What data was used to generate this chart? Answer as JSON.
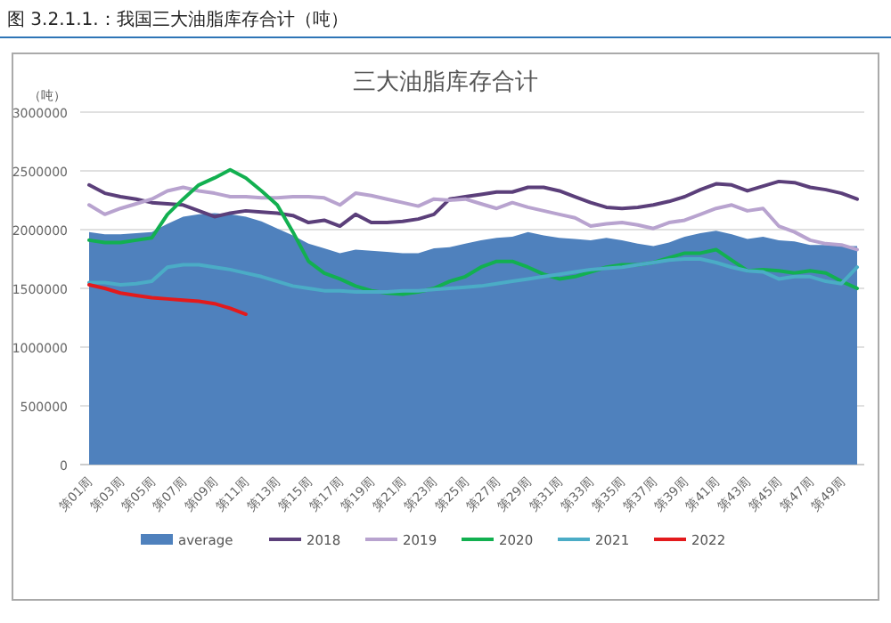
{
  "chart_data": {
    "type": "line",
    "title": "三大油脂库存合计",
    "ylabel": "（吨）",
    "annotations": [
      "图 3.2.1.1.：我国三大油脂库存合计（吨）"
    ],
    "categories": [
      "第01周",
      null,
      "第03周",
      null,
      "第05周",
      null,
      "第07周",
      null,
      "第09周",
      null,
      "第11周",
      null,
      "第13周",
      null,
      "第15周",
      null,
      "第17周",
      null,
      "第19周",
      null,
      "第21周",
      null,
      "第23周",
      null,
      "第25周",
      null,
      "第27周",
      null,
      "第29周",
      null,
      "第31周",
      null,
      "第33周",
      null,
      "第35周",
      null,
      "第37周",
      null,
      "第39周",
      null,
      "第41周",
      null,
      "第43周",
      null,
      "第45周",
      null,
      "第47周",
      null,
      "第49周",
      null
    ],
    "ylim": [
      0,
      3000000
    ],
    "yticks": [
      0,
      500000,
      1000000,
      1500000,
      2000000,
      2500000,
      3000000
    ],
    "grid": "y",
    "legend": "bottom",
    "series": [
      {
        "name": "average",
        "type": "area",
        "color": "#4f81bd",
        "values": [
          1980000,
          1960000,
          1960000,
          1970000,
          1980000,
          2050000,
          2110000,
          2130000,
          2140000,
          2130000,
          2110000,
          2070000,
          2010000,
          1950000,
          1880000,
          1840000,
          1800000,
          1830000,
          1820000,
          1810000,
          1800000,
          1800000,
          1840000,
          1850000,
          1880000,
          1910000,
          1930000,
          1940000,
          1980000,
          1950000,
          1930000,
          1920000,
          1910000,
          1930000,
          1910000,
          1880000,
          1860000,
          1890000,
          1940000,
          1970000,
          1990000,
          1960000,
          1920000,
          1940000,
          1910000,
          1900000,
          1870000,
          1870000,
          1860000,
          1860000
        ]
      },
      {
        "name": "2018",
        "type": "line",
        "color": "#5b3f7a",
        "values": [
          2380000,
          2310000,
          2280000,
          2260000,
          2230000,
          2220000,
          2210000,
          2160000,
          2110000,
          2140000,
          2160000,
          2150000,
          2140000,
          2120000,
          2060000,
          2080000,
          2030000,
          2130000,
          2060000,
          2060000,
          2070000,
          2090000,
          2130000,
          2260000,
          2280000,
          2300000,
          2320000,
          2320000,
          2360000,
          2360000,
          2330000,
          2280000,
          2230000,
          2190000,
          2180000,
          2190000,
          2210000,
          2240000,
          2280000,
          2340000,
          2390000,
          2380000,
          2330000,
          2370000,
          2410000,
          2400000,
          2360000,
          2340000,
          2310000,
          2260000
        ]
      },
      {
        "name": "2019",
        "type": "line",
        "color": "#b8a3cf",
        "values": [
          2210000,
          2130000,
          2180000,
          2220000,
          2260000,
          2330000,
          2360000,
          2330000,
          2310000,
          2280000,
          2280000,
          2270000,
          2270000,
          2280000,
          2280000,
          2270000,
          2210000,
          2310000,
          2290000,
          2260000,
          2230000,
          2200000,
          2260000,
          2250000,
          2260000,
          2220000,
          2180000,
          2230000,
          2190000,
          2160000,
          2130000,
          2100000,
          2030000,
          2050000,
          2060000,
          2040000,
          2010000,
          2060000,
          2080000,
          2130000,
          2180000,
          2210000,
          2160000,
          2180000,
          2030000,
          1980000,
          1910000,
          1880000,
          1870000,
          1830000
        ]
      },
      {
        "name": "2020",
        "type": "line",
        "color": "#12b050",
        "values": [
          1910000,
          1890000,
          1890000,
          1910000,
          1930000,
          2130000,
          2260000,
          2380000,
          2440000,
          2510000,
          2440000,
          2330000,
          2210000,
          1980000,
          1730000,
          1630000,
          1580000,
          1520000,
          1480000,
          1460000,
          1450000,
          1470000,
          1500000,
          1560000,
          1600000,
          1680000,
          1730000,
          1730000,
          1680000,
          1620000,
          1580000,
          1600000,
          1640000,
          1680000,
          1700000,
          1700000,
          1720000,
          1760000,
          1800000,
          1800000,
          1830000,
          1740000,
          1650000,
          1660000,
          1650000,
          1630000,
          1650000,
          1630000,
          1560000,
          1500000
        ]
      },
      {
        "name": "2021",
        "type": "line",
        "color": "#4bacc6",
        "values": [
          1550000,
          1550000,
          1530000,
          1540000,
          1560000,
          1680000,
          1700000,
          1700000,
          1680000,
          1660000,
          1630000,
          1600000,
          1560000,
          1520000,
          1500000,
          1480000,
          1480000,
          1470000,
          1470000,
          1470000,
          1480000,
          1480000,
          1490000,
          1500000,
          1510000,
          1520000,
          1540000,
          1560000,
          1580000,
          1600000,
          1620000,
          1640000,
          1660000,
          1670000,
          1680000,
          1700000,
          1720000,
          1740000,
          1750000,
          1750000,
          1720000,
          1680000,
          1650000,
          1640000,
          1580000,
          1600000,
          1600000,
          1560000,
          1540000,
          1680000
        ]
      },
      {
        "name": "2022",
        "type": "line",
        "color": "#e31a1c",
        "values": [
          1530000,
          1500000,
          1460000,
          1440000,
          1420000,
          1410000,
          1400000,
          1390000,
          1370000,
          1330000,
          1280000,
          null,
          null,
          null,
          null,
          null,
          null,
          null,
          null,
          null,
          null,
          null,
          null,
          null,
          null,
          null,
          null,
          null,
          null,
          null,
          null,
          null,
          null,
          null,
          null,
          null,
          null,
          null,
          null,
          null,
          null,
          null,
          null,
          null,
          null,
          null,
          null,
          null,
          null,
          null
        ]
      }
    ]
  }
}
